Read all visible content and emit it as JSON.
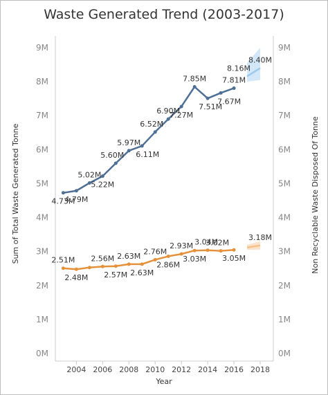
{
  "chart_data": {
    "type": "line",
    "title": "Waste Generated Trend (2003-2017)",
    "xlabel": "Year",
    "ylabel_left": "Sum of Total Waste Generated Tonne",
    "ylabel_right": "Non Recyclable Waste Disposed Of Tonne",
    "xlim": [
      2002.4,
      2019.0
    ],
    "ylim": [
      0,
      9000000
    ],
    "x_ticks": [
      "2004",
      "2006",
      "2008",
      "2010",
      "2012",
      "2014",
      "2016",
      "2018"
    ],
    "x_tick_values": [
      2004,
      2006,
      2008,
      2010,
      2012,
      2014,
      2016,
      2018
    ],
    "y_ticks": [
      "0M",
      "1M",
      "2M",
      "3M",
      "4M",
      "5M",
      "6M",
      "7M",
      "8M",
      "9M"
    ],
    "y_tick_values": [
      0,
      1000000,
      2000000,
      3000000,
      4000000,
      5000000,
      6000000,
      7000000,
      8000000,
      9000000
    ],
    "grid": false,
    "series": [
      {
        "color": "#4e6f96",
        "x": [
          2003,
          2004,
          2005,
          2006,
          2007,
          2008,
          2009,
          2010,
          2011,
          2012,
          2013,
          2014,
          2015,
          2016
        ],
        "values": [
          4730000,
          4790000,
          5020000,
          5220000,
          5600000,
          5970000,
          6110000,
          6520000,
          6900000,
          7270000,
          7850000,
          7510000,
          7670000,
          7810000
        ],
        "point_labels": [
          "4.73M",
          "4.79M",
          "5.02M",
          "5.22M",
          "5.60M",
          "5.97M",
          "6.11M",
          "6.52M",
          "6.90M",
          "7.27M",
          "7.85M",
          "7.51M",
          "7.67M",
          "7.81M"
        ],
        "forecast": {
          "color": "#9cc9ee",
          "x": [
            2017,
            2018
          ],
          "values": [
            8160000,
            8400000
          ],
          "labels": [
            "8.16M",
            "8.40M"
          ],
          "band_low": [
            8000000,
            8050000
          ],
          "band_high": [
            8550000,
            9000000
          ]
        }
      },
      {
        "color": "#e5913a",
        "x": [
          2003,
          2004,
          2005,
          2006,
          2007,
          2008,
          2009,
          2010,
          2011,
          2012,
          2013,
          2014,
          2015,
          2016
        ],
        "values": [
          2510000,
          2480000,
          2530000,
          2560000,
          2570000,
          2630000,
          2630000,
          2760000,
          2860000,
          2930000,
          3030000,
          3040000,
          3020000,
          3050000
        ],
        "point_labels": [
          "2.51M",
          "2.48M",
          "",
          "2.56M",
          "2.57M",
          "2.63M",
          "2.63M",
          "2.76M",
          "2.86M",
          "2.93M",
          "3.03M",
          "3.04M",
          "3.02M",
          "3.05M"
        ],
        "forecast": {
          "color": "#f5c08a",
          "x": [
            2017,
            2018
          ],
          "values": [
            3120000,
            3180000
          ],
          "labels": [
            "",
            "3.18M"
          ],
          "band_low": [
            3050000,
            3060000
          ],
          "band_high": [
            3200000,
            3300000
          ]
        }
      }
    ]
  }
}
